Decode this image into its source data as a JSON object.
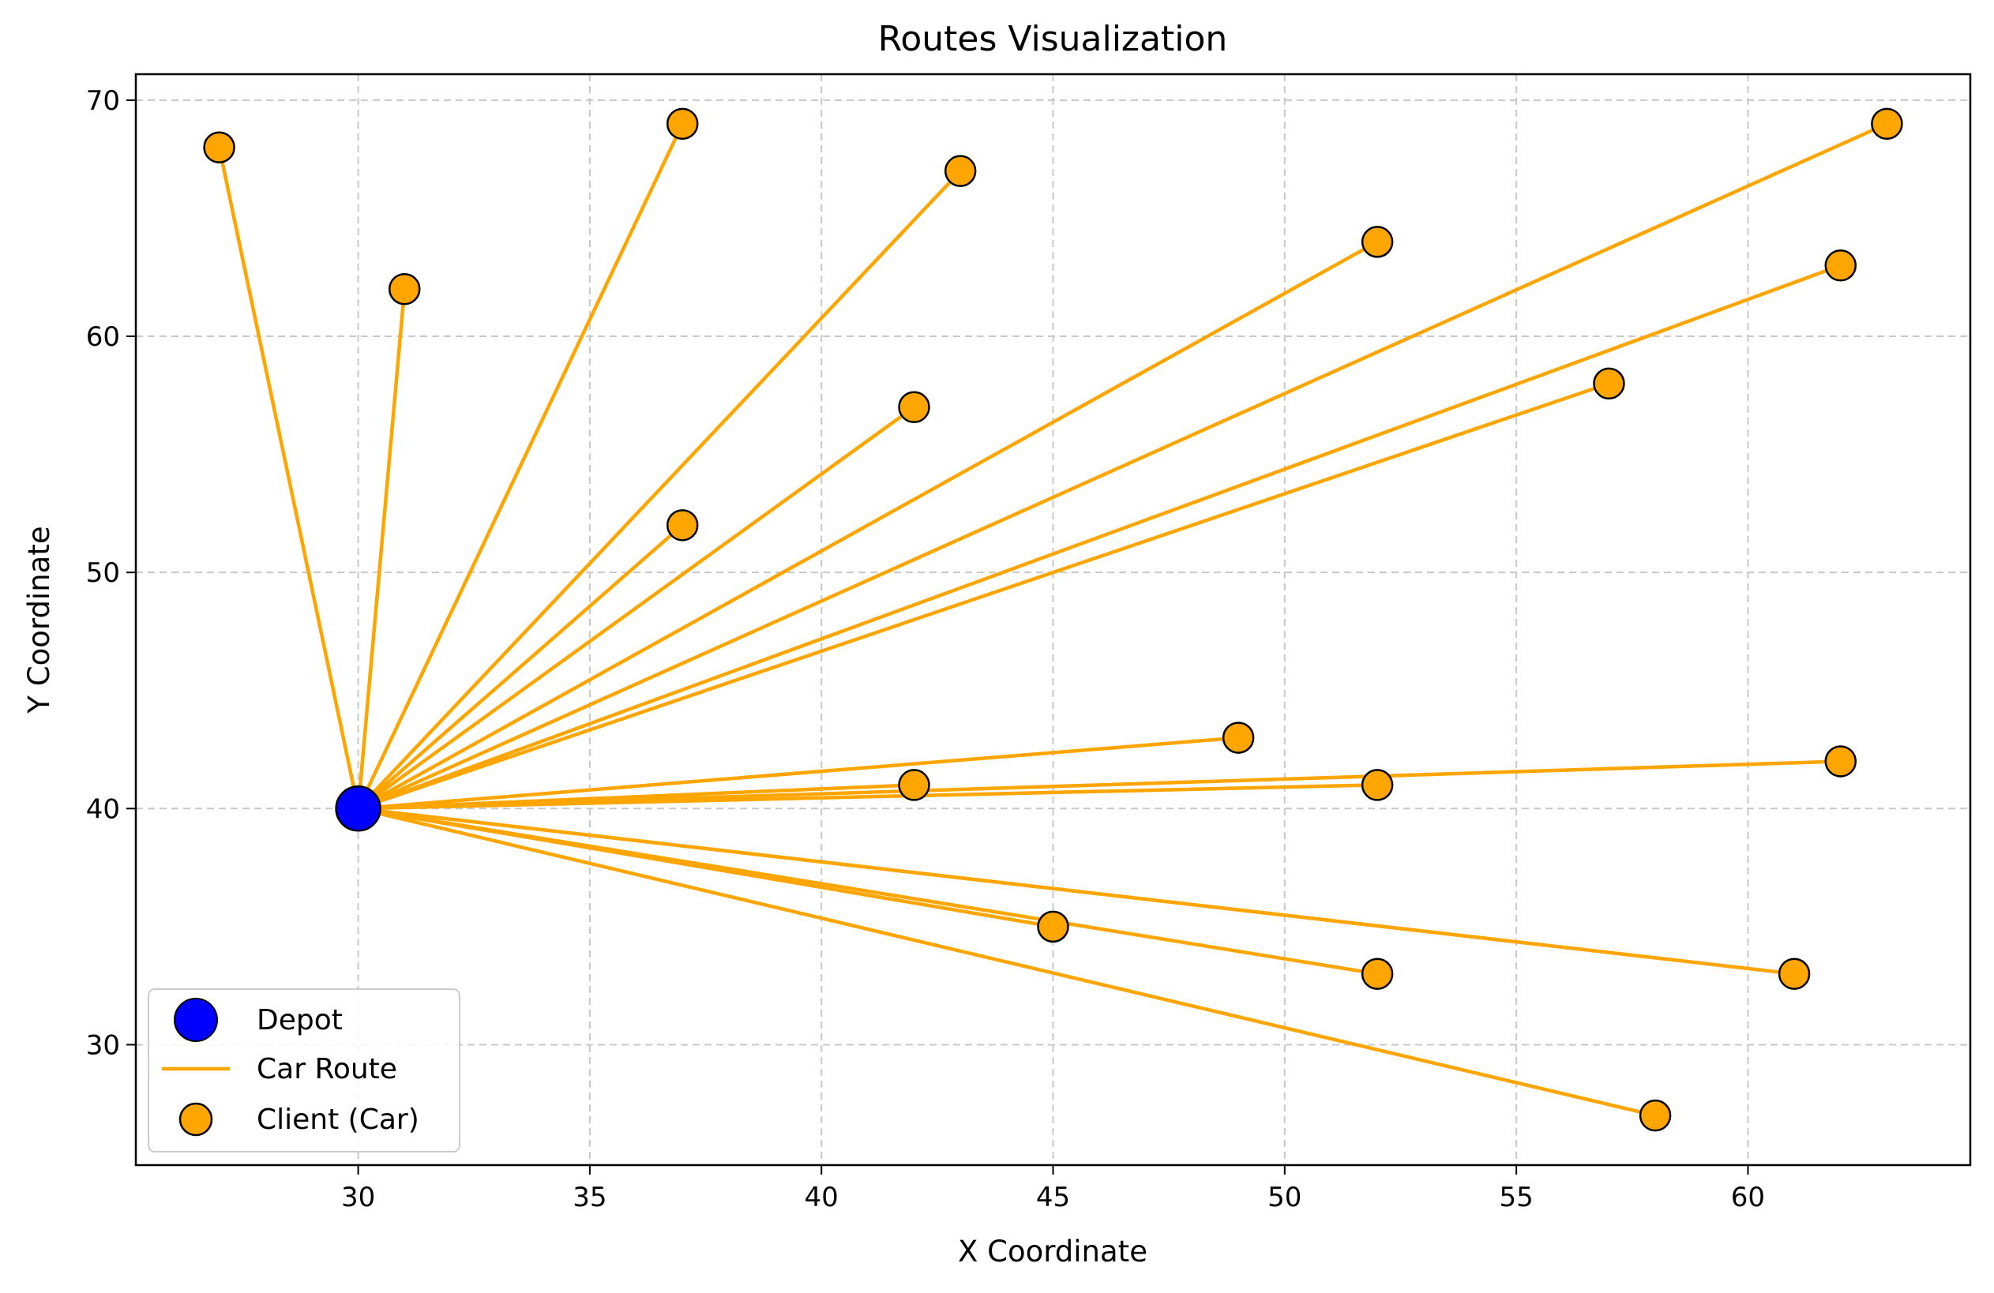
{
  "chart_data": {
    "type": "scatter",
    "title": "Routes Visualization",
    "xlabel": "X Coordinate",
    "ylabel": "Y Coordinate",
    "xlim": [
      25.2,
      64.8
    ],
    "ylim": [
      24.9,
      71.1
    ],
    "xticks": [
      30,
      35,
      40,
      45,
      50,
      55,
      60
    ],
    "yticks": [
      30,
      40,
      50,
      60,
      70
    ],
    "xtick_labels": [
      "30",
      "35",
      "40",
      "45",
      "50",
      "55",
      "60"
    ],
    "ytick_labels": [
      "30",
      "40",
      "50",
      "60",
      "70"
    ],
    "grid": true,
    "legend_position": "lower-left",
    "colors": {
      "depot": "#0000ff",
      "route": "#ffa500",
      "client": "#ffa500",
      "edge": "#000000",
      "grid": "#c8c8c8"
    },
    "depot": {
      "x": 30,
      "y": 40
    },
    "clients": [
      {
        "x": 27,
        "y": 68
      },
      {
        "x": 31,
        "y": 62
      },
      {
        "x": 37,
        "y": 69
      },
      {
        "x": 43,
        "y": 67
      },
      {
        "x": 52,
        "y": 64
      },
      {
        "x": 63,
        "y": 69
      },
      {
        "x": 62,
        "y": 63
      },
      {
        "x": 57,
        "y": 58
      },
      {
        "x": 42,
        "y": 57
      },
      {
        "x": 37,
        "y": 52
      },
      {
        "x": 49,
        "y": 43
      },
      {
        "x": 42,
        "y": 41
      },
      {
        "x": 52,
        "y": 41
      },
      {
        "x": 62,
        "y": 42
      },
      {
        "x": 45,
        "y": 35
      },
      {
        "x": 52,
        "y": 33
      },
      {
        "x": 61,
        "y": 33
      },
      {
        "x": 58,
        "y": 27
      }
    ],
    "legend": [
      {
        "label": "Depot",
        "marker": "depot"
      },
      {
        "label": "Car Route",
        "marker": "line"
      },
      {
        "label": "Client (Car)",
        "marker": "client"
      }
    ]
  }
}
